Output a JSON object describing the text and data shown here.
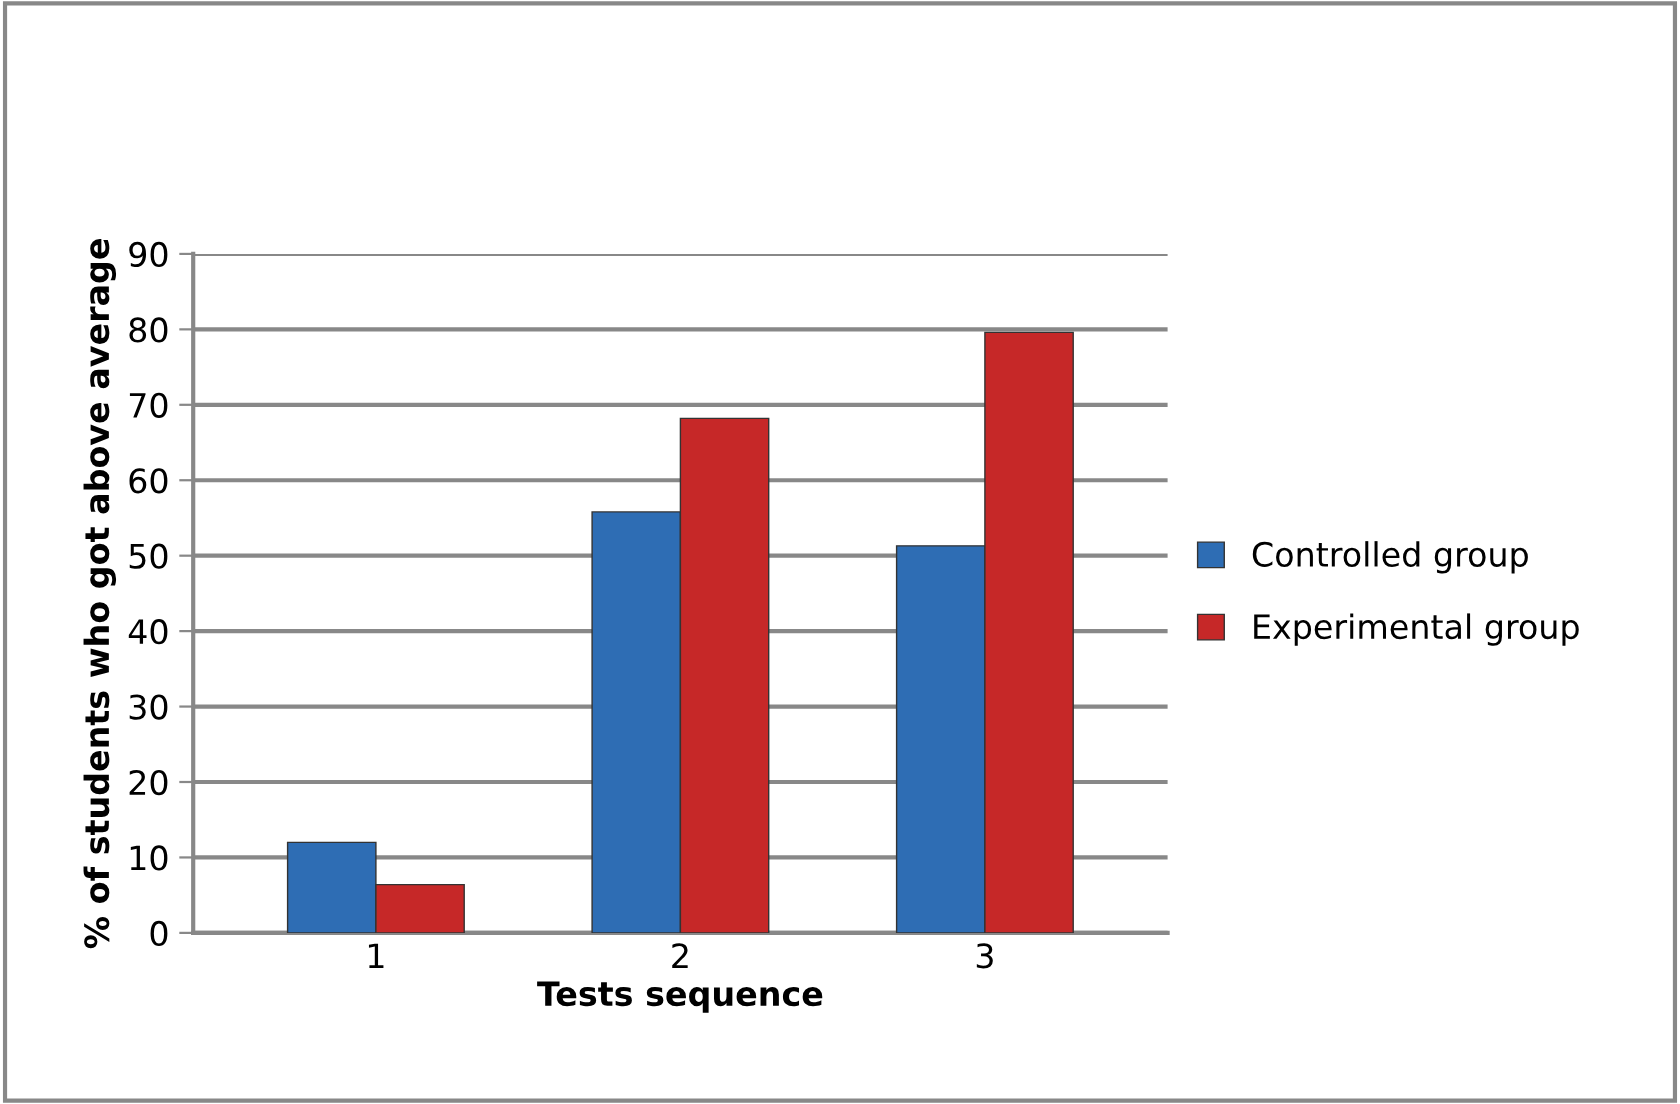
{
  "chart_data": {
    "type": "bar",
    "xlabel": "Tests sequence",
    "ylabel": "% of students who got above average",
    "categories": [
      "1",
      "2",
      "3"
    ],
    "series": [
      {
        "name": "Controlled group",
        "color": "#2e6db4",
        "values": [
          12,
          55.8,
          51.3
        ]
      },
      {
        "name": "Experimental group",
        "color": "#c62828",
        "values": [
          6.4,
          68.2,
          79.6
        ]
      }
    ],
    "ylim": [
      0,
      90
    ],
    "yticks": [
      0,
      10,
      20,
      30,
      40,
      50,
      60,
      70,
      80,
      90
    ],
    "grid": "y",
    "legend": "right"
  }
}
